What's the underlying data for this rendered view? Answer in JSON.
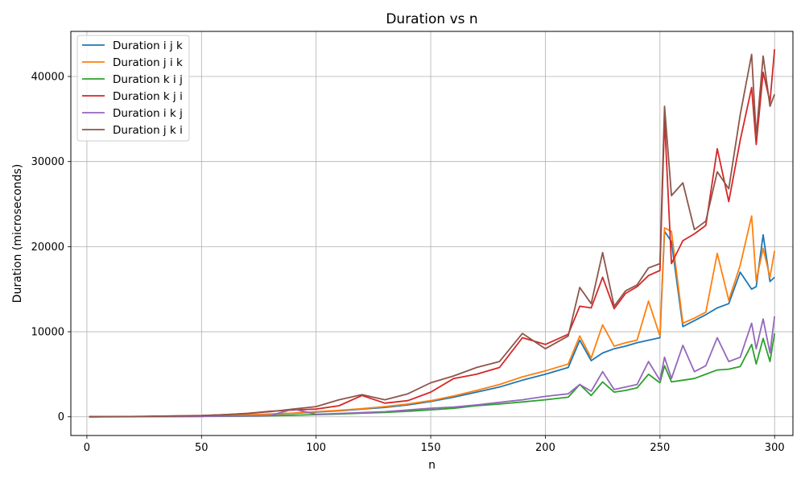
{
  "chart_data": {
    "type": "line",
    "title": "Duration vs n",
    "xlabel": "n",
    "ylabel": "Duration (microseconds)",
    "xlim": [
      -7,
      308
    ],
    "ylim": [
      -2200,
      45300
    ],
    "xticks": [
      0,
      50,
      100,
      150,
      200,
      250,
      300
    ],
    "yticks": [
      0,
      10000,
      20000,
      30000,
      40000
    ],
    "grid": true,
    "legend_position": "top-left",
    "x": [
      1,
      25,
      50,
      60,
      70,
      80,
      90,
      100,
      110,
      120,
      130,
      140,
      150,
      160,
      170,
      180,
      190,
      200,
      210,
      215,
      220,
      225,
      230,
      235,
      240,
      245,
      250,
      252,
      255,
      260,
      265,
      270,
      275,
      280,
      285,
      290,
      292,
      295,
      298,
      300
    ],
    "series": [
      {
        "name": "Duration i j k",
        "color": "#1f77b4",
        "values": [
          0,
          30,
          100,
          150,
          200,
          300,
          400,
          550,
          700,
          900,
          1100,
          1400,
          1800,
          2300,
          2900,
          3500,
          4300,
          5000,
          5800,
          9000,
          6600,
          7500,
          8000,
          8300,
          8700,
          9000,
          9300,
          21800,
          20600,
          10600,
          11300,
          12000,
          12800,
          13300,
          17000,
          15000,
          15300,
          21400,
          15900,
          16400
        ]
      },
      {
        "name": "Duration j i k",
        "color": "#ff7f0e",
        "values": [
          0,
          30,
          110,
          160,
          220,
          330,
          430,
          600,
          750,
          950,
          1200,
          1500,
          1900,
          2450,
          3100,
          3800,
          4700,
          5400,
          6200,
          9500,
          6900,
          10800,
          8300,
          8700,
          9000,
          13600,
          9500,
          22200,
          21800,
          11000,
          11600,
          12300,
          19200,
          13700,
          17800,
          23600,
          16000,
          19800,
          16400,
          19500
        ]
      },
      {
        "name": "Duration k i j",
        "color": "#2ca02c",
        "values": [
          0,
          10,
          40,
          60,
          90,
          130,
          180,
          250,
          330,
          430,
          520,
          650,
          820,
          1000,
          1300,
          1500,
          1750,
          2000,
          2300,
          3800,
          2500,
          4100,
          2900,
          3100,
          3400,
          5000,
          4000,
          6000,
          4100,
          4300,
          4500,
          5000,
          5500,
          5600,
          5900,
          8500,
          6200,
          9200,
          6500,
          9800
        ]
      },
      {
        "name": "Duration k j i",
        "color": "#d62728",
        "values": [
          0,
          40,
          150,
          250,
          400,
          650,
          800,
          900,
          1300,
          2500,
          1600,
          1900,
          2900,
          4500,
          5000,
          5800,
          9300,
          8500,
          9700,
          13000,
          12800,
          16400,
          12700,
          14500,
          15300,
          16600,
          17200,
          35000,
          18000,
          20700,
          21500,
          22500,
          31500,
          25300,
          32500,
          38700,
          32000,
          40500,
          37000,
          43200
        ]
      },
      {
        "name": "Duration i k j",
        "color": "#9467bd",
        "values": [
          0,
          10,
          50,
          80,
          110,
          160,
          900,
          300,
          380,
          500,
          600,
          800,
          1000,
          1150,
          1400,
          1700,
          2000,
          2400,
          2700,
          3800,
          3000,
          5300,
          3200,
          3500,
          3800,
          6500,
          4300,
          7000,
          4500,
          8400,
          5300,
          6000,
          9300,
          6500,
          7000,
          11000,
          8000,
          11500,
          7500,
          11800
        ]
      },
      {
        "name": "Duration j k i",
        "color": "#8c564b",
        "values": [
          0,
          40,
          140,
          240,
          380,
          600,
          900,
          1200,
          2000,
          2600,
          2000,
          2700,
          4000,
          4800,
          5800,
          6500,
          9800,
          8000,
          9500,
          15200,
          13300,
          19300,
          13000,
          14800,
          15500,
          17500,
          18000,
          36500,
          26000,
          27500,
          22000,
          23000,
          28800,
          26800,
          35500,
          42600,
          33000,
          42400,
          36500,
          37900
        ]
      }
    ]
  }
}
